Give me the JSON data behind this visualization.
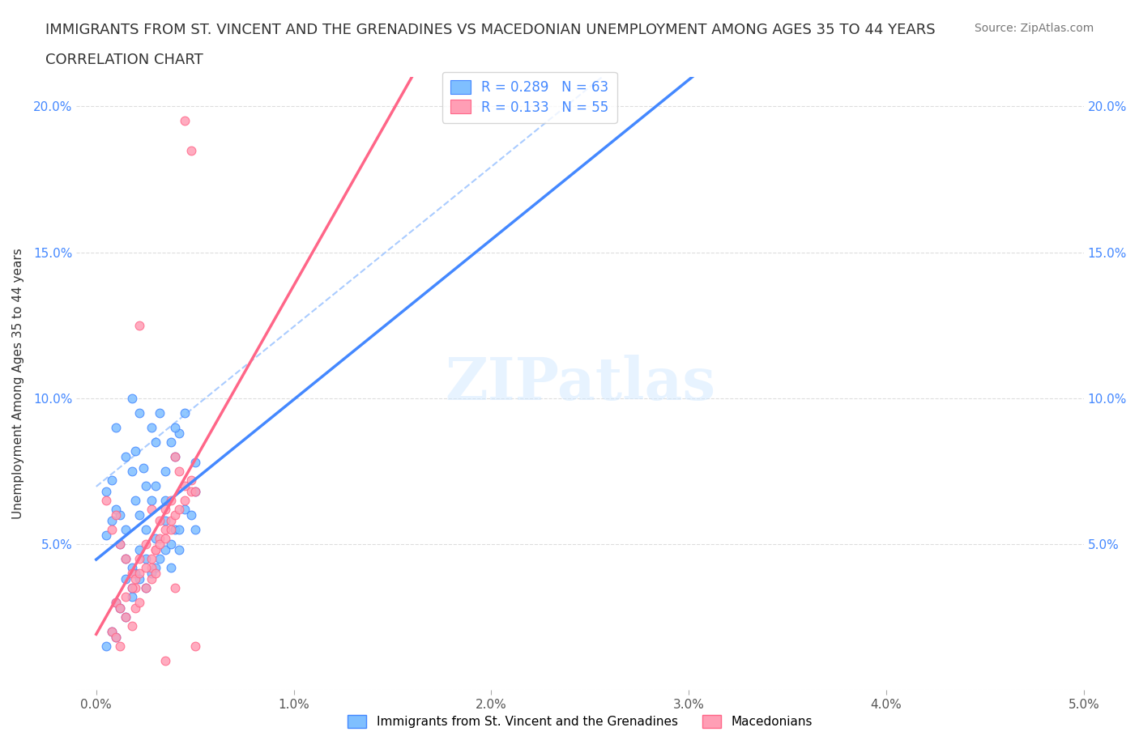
{
  "title_line1": "IMMIGRANTS FROM ST. VINCENT AND THE GRENADINES VS MACEDONIAN UNEMPLOYMENT AMONG AGES 35 TO 44 YEARS",
  "title_line2": "CORRELATION CHART",
  "source_text": "Source: ZipAtlas.com",
  "xlabel": "",
  "ylabel": "Unemployment Among Ages 35 to 44 years",
  "xlim": [
    0.0,
    0.05
  ],
  "ylim": [
    0.0,
    0.21
  ],
  "xticks": [
    0.0,
    0.01,
    0.02,
    0.03,
    0.04,
    0.05
  ],
  "xticklabels": [
    "0.0%",
    "1.0%",
    "2.0%",
    "3.0%",
    "4.0%",
    "5.0%"
  ],
  "yticks": [
    0.0,
    0.05,
    0.1,
    0.15,
    0.2
  ],
  "yticklabels": [
    "",
    "5.0%",
    "10.0%",
    "15.0%",
    "20.0%"
  ],
  "blue_color": "#7fbfff",
  "pink_color": "#ff9eb5",
  "blue_line_color": "#4488ff",
  "pink_line_color": "#ff6688",
  "blue_dashed_color": "#aaccff",
  "R_blue": 0.289,
  "N_blue": 63,
  "R_pink": 0.133,
  "N_pink": 55,
  "legend_label_blue": "Immigrants from St. Vincent and the Grenadines",
  "legend_label_pink": "Macedonians",
  "watermark": "ZIPatlas",
  "blue_scatter": [
    [
      0.0012,
      0.06
    ],
    [
      0.0018,
      0.075
    ],
    [
      0.0008,
      0.072
    ],
    [
      0.0015,
      0.08
    ],
    [
      0.002,
      0.065
    ],
    [
      0.001,
      0.09
    ],
    [
      0.0005,
      0.068
    ],
    [
      0.0022,
      0.095
    ],
    [
      0.003,
      0.085
    ],
    [
      0.0025,
      0.07
    ],
    [
      0.0035,
      0.075
    ],
    [
      0.004,
      0.08
    ],
    [
      0.0018,
      0.1
    ],
    [
      0.0028,
      0.09
    ],
    [
      0.0032,
      0.095
    ],
    [
      0.0038,
      0.085
    ],
    [
      0.0042,
      0.088
    ],
    [
      0.005,
      0.078
    ],
    [
      0.0015,
      0.055
    ],
    [
      0.0022,
      0.06
    ],
    [
      0.0028,
      0.065
    ],
    [
      0.003,
      0.07
    ],
    [
      0.0035,
      0.065
    ],
    [
      0.004,
      0.09
    ],
    [
      0.0045,
      0.095
    ],
    [
      0.002,
      0.082
    ],
    [
      0.0024,
      0.076
    ],
    [
      0.001,
      0.062
    ],
    [
      0.0008,
      0.058
    ],
    [
      0.0005,
      0.053
    ],
    [
      0.0012,
      0.05
    ],
    [
      0.0015,
      0.045
    ],
    [
      0.0018,
      0.042
    ],
    [
      0.0022,
      0.048
    ],
    [
      0.0025,
      0.055
    ],
    [
      0.003,
      0.052
    ],
    [
      0.0035,
      0.058
    ],
    [
      0.004,
      0.055
    ],
    [
      0.0045,
      0.062
    ],
    [
      0.005,
      0.068
    ],
    [
      0.0015,
      0.038
    ],
    [
      0.0018,
      0.035
    ],
    [
      0.002,
      0.04
    ],
    [
      0.0025,
      0.045
    ],
    [
      0.003,
      0.042
    ],
    [
      0.0035,
      0.048
    ],
    [
      0.0038,
      0.05
    ],
    [
      0.0042,
      0.055
    ],
    [
      0.0048,
      0.06
    ],
    [
      0.001,
      0.03
    ],
    [
      0.0012,
      0.028
    ],
    [
      0.0015,
      0.025
    ],
    [
      0.0018,
      0.032
    ],
    [
      0.0022,
      0.038
    ],
    [
      0.0025,
      0.035
    ],
    [
      0.0028,
      0.04
    ],
    [
      0.0032,
      0.045
    ],
    [
      0.0038,
      0.042
    ],
    [
      0.0042,
      0.048
    ],
    [
      0.005,
      0.055
    ],
    [
      0.0005,
      0.015
    ],
    [
      0.0008,
      0.02
    ],
    [
      0.001,
      0.018
    ]
  ],
  "pink_scatter": [
    [
      0.0005,
      0.065
    ],
    [
      0.0008,
      0.055
    ],
    [
      0.001,
      0.06
    ],
    [
      0.0012,
      0.05
    ],
    [
      0.0015,
      0.045
    ],
    [
      0.0018,
      0.04
    ],
    [
      0.002,
      0.035
    ],
    [
      0.0022,
      0.045
    ],
    [
      0.0025,
      0.05
    ],
    [
      0.0028,
      0.042
    ],
    [
      0.003,
      0.048
    ],
    [
      0.0032,
      0.052
    ],
    [
      0.0035,
      0.055
    ],
    [
      0.0038,
      0.058
    ],
    [
      0.004,
      0.06
    ],
    [
      0.0042,
      0.062
    ],
    [
      0.0045,
      0.065
    ],
    [
      0.0048,
      0.068
    ],
    [
      0.001,
      0.03
    ],
    [
      0.0012,
      0.028
    ],
    [
      0.0015,
      0.032
    ],
    [
      0.0018,
      0.035
    ],
    [
      0.002,
      0.038
    ],
    [
      0.0022,
      0.04
    ],
    [
      0.0025,
      0.042
    ],
    [
      0.0028,
      0.045
    ],
    [
      0.003,
      0.048
    ],
    [
      0.0032,
      0.05
    ],
    [
      0.0035,
      0.052
    ],
    [
      0.0038,
      0.055
    ],
    [
      0.0015,
      0.025
    ],
    [
      0.0018,
      0.022
    ],
    [
      0.002,
      0.028
    ],
    [
      0.0022,
      0.03
    ],
    [
      0.0025,
      0.035
    ],
    [
      0.0028,
      0.038
    ],
    [
      0.003,
      0.04
    ],
    [
      0.0008,
      0.02
    ],
    [
      0.001,
      0.018
    ],
    [
      0.0012,
      0.015
    ],
    [
      0.004,
      0.08
    ],
    [
      0.0042,
      0.075
    ],
    [
      0.0045,
      0.07
    ],
    [
      0.0048,
      0.072
    ],
    [
      0.005,
      0.068
    ],
    [
      0.0038,
      0.065
    ],
    [
      0.0035,
      0.062
    ],
    [
      0.0032,
      0.058
    ],
    [
      0.0045,
      0.195
    ],
    [
      0.0048,
      0.185
    ],
    [
      0.005,
      0.015
    ],
    [
      0.0035,
      0.01
    ],
    [
      0.004,
      0.035
    ],
    [
      0.0028,
      0.062
    ],
    [
      0.0022,
      0.125
    ]
  ]
}
